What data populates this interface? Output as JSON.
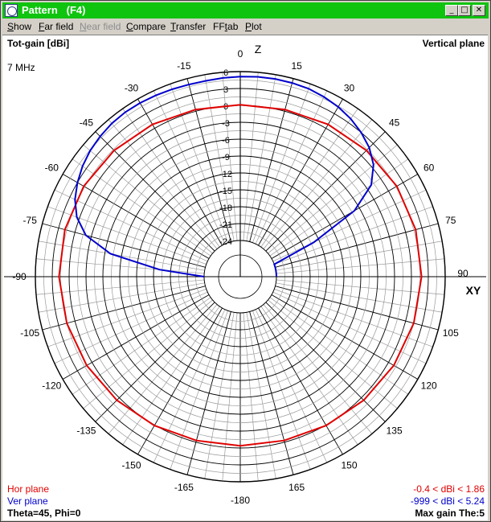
{
  "window": {
    "title": "Pattern",
    "shortcut": "(F4)",
    "buttons": {
      "minimize": "_",
      "maximize": "□",
      "close": "✕"
    }
  },
  "menu": [
    {
      "pre": "",
      "key": "S",
      "post": "how",
      "enabled": true
    },
    {
      "pre": "",
      "key": "F",
      "post": "ar field",
      "enabled": true
    },
    {
      "pre": "",
      "key": "N",
      "post": "ear field",
      "enabled": false
    },
    {
      "pre": "",
      "key": "C",
      "post": "ompare",
      "enabled": true
    },
    {
      "pre": "",
      "key": "T",
      "post": "ransfer",
      "enabled": true
    },
    {
      "pre": "FF",
      "key": "t",
      "post": "ab",
      "enabled": true
    },
    {
      "pre": "",
      "key": "P",
      "post": "lot",
      "enabled": true
    }
  ],
  "header": {
    "left_title": "Tot-gain [dBi]",
    "frequency": "7 MHz",
    "right_title": "Vertical plane"
  },
  "footer": {
    "hor_plane": "Hor plane",
    "ver_plane": "Ver plane",
    "hor_range": "-0.4 < dBi < 1.86",
    "ver_range": "-999 < dBi < 5.24",
    "angles": "Theta=45, Phi=0",
    "max_gain": "Max gain The:5"
  },
  "colors": {
    "hor": "#e00000",
    "ver": "#0000cc",
    "title_bar": "#0fc40f"
  },
  "chart_data": {
    "type": "polar",
    "axis_labels": {
      "zenith": "Z",
      "horizon": "XY"
    },
    "angle_ticks": [
      "0",
      "15",
      "30",
      "45",
      "60",
      "75",
      "90",
      "105",
      "120",
      "135",
      "150",
      "165",
      "-180",
      "-165",
      "-150",
      "-135",
      "-120",
      "-105",
      "-90",
      "-75",
      "-60",
      "-45",
      "-30",
      "-15"
    ],
    "angle_values": [
      0,
      15,
      30,
      45,
      60,
      75,
      90,
      105,
      120,
      135,
      150,
      165,
      180,
      195,
      210,
      225,
      240,
      255,
      270,
      285,
      300,
      315,
      330,
      345
    ],
    "radial_ticks": [
      "6",
      "3",
      "0",
      "-3",
      "-6",
      "-9",
      "-12",
      "-15",
      "-18",
      "-21",
      "-24"
    ],
    "radial_values": [
      6,
      3,
      0,
      -3,
      -6,
      -9,
      -12,
      -15,
      -18,
      -21,
      -24
    ],
    "series": [
      {
        "name": "Hor plane",
        "angles_deg": [
          0,
          15,
          30,
          45,
          60,
          75,
          90,
          105,
          120,
          135,
          150,
          165,
          180,
          195,
          210,
          225,
          240,
          255,
          270,
          285,
          300,
          315,
          330,
          345
        ],
        "gain_dbi": [
          0.1,
          0.3,
          0.8,
          1.3,
          1.7,
          1.86,
          1.8,
          1.5,
          1.1,
          0.6,
          0.1,
          -0.3,
          -0.4,
          -0.3,
          0.1,
          0.6,
          1.1,
          1.5,
          1.8,
          1.86,
          1.7,
          1.3,
          0.8,
          0.3
        ]
      },
      {
        "name": "Ver plane",
        "angles_deg": [
          -90,
          -85,
          -80,
          -75,
          -70,
          -65,
          -60,
          -55,
          -50,
          -45,
          -40,
          -35,
          -30,
          -25,
          -20,
          -15,
          -10,
          -5,
          0,
          5,
          10,
          15,
          20,
          25,
          30,
          35,
          40,
          45,
          50,
          55,
          60,
          65,
          70,
          75,
          80,
          85,
          90
        ],
        "gain_dbi": [
          -24,
          -16,
          -7,
          -2,
          0.5,
          2,
          3,
          3.8,
          4.4,
          4.8,
          5.1,
          5.24,
          5.2,
          5.1,
          5.0,
          4.9,
          4.9,
          5.0,
          5.1,
          5.2,
          5.24,
          5.2,
          5.1,
          4.8,
          4.4,
          3.8,
          3.0,
          2.0,
          0.5,
          -2,
          -7,
          -16,
          -24,
          -24,
          -24,
          -24,
          -24
        ]
      }
    ]
  }
}
